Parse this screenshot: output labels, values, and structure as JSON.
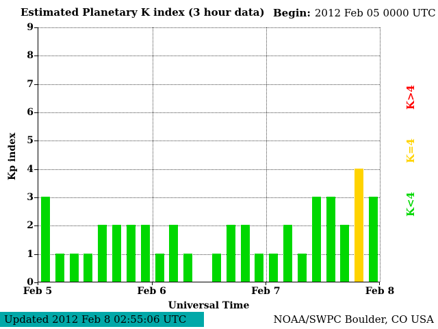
{
  "header": {
    "title": "Estimated Planetary K index (3 hour data)",
    "begin_label": "Begin:",
    "begin_value": "2012 Feb 05 0000 UTC"
  },
  "chart_data": {
    "type": "bar",
    "title": "Estimated Planetary K index (3 hour data)",
    "xlabel": "Universal Time",
    "ylabel": "Kp index",
    "ylim": [
      0,
      9
    ],
    "yticks": [
      0,
      1,
      2,
      3,
      4,
      5,
      6,
      7,
      8,
      9
    ],
    "xtick_labels": [
      "Feb 5",
      "Feb 6",
      "Feb 7",
      "Feb 8"
    ],
    "begin": "2012 Feb 05 0000 UTC",
    "bar_interval_hours": 3,
    "values": [
      3,
      1,
      1,
      1,
      2,
      2,
      2,
      2,
      1,
      2,
      1,
      0,
      1,
      2,
      2,
      1,
      1,
      2,
      1,
      3,
      3,
      2,
      4,
      3
    ],
    "colors": {
      "below4": "#00d800",
      "equal4": "#ffd300",
      "above4": "#ff0000"
    },
    "legend": [
      {
        "label": "K>4",
        "color": "#ff0000"
      },
      {
        "label": "K=4",
        "color": "#ffd300"
      },
      {
        "label": "K<4",
        "color": "#00d800"
      }
    ],
    "grid": "dotted"
  },
  "footer": {
    "updated": "Updated 2012 Feb  8 02:55:06 UTC",
    "source": "NOAA/SWPC Boulder, CO USA"
  }
}
